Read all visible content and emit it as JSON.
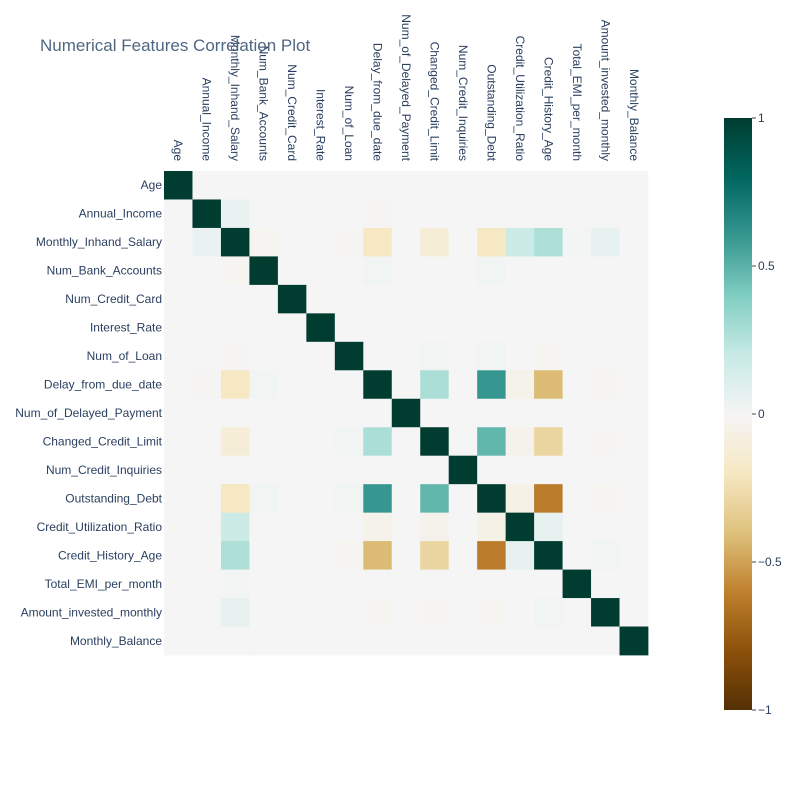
{
  "chart_data": {
    "type": "heatmap",
    "title": "Numerical Features Correlation Plot",
    "features": [
      "Age",
      "Annual_Income",
      "Monthly_Inhand_Salary",
      "Num_Bank_Accounts",
      "Num_Credit_Card",
      "Interest_Rate",
      "Num_of_Loan",
      "Delay_from_due_date",
      "Num_of_Delayed_Payment",
      "Changed_Credit_Limit",
      "Num_Credit_Inquiries",
      "Outstanding_Debt",
      "Credit_Utilization_Ratio",
      "Credit_History_Age",
      "Total_EMI_per_month",
      "Amount_invested_monthly",
      "Monthly_Balance"
    ],
    "matrix": [
      [
        1,
        0,
        0,
        0,
        0,
        0,
        0,
        0,
        0,
        0,
        0,
        0,
        0,
        0,
        0,
        0,
        0
      ],
      [
        0,
        1,
        0.05,
        0,
        0,
        0,
        0,
        -0.01,
        0,
        0,
        0,
        0,
        0,
        0,
        0,
        0,
        0
      ],
      [
        0,
        0.05,
        1,
        -0.02,
        0,
        0,
        -0.01,
        -0.2,
        0,
        -0.12,
        0,
        -0.2,
        0.18,
        0.27,
        0.01,
        0.06,
        0
      ],
      [
        0,
        0,
        -0.02,
        1,
        0,
        0,
        0,
        0.02,
        0,
        0,
        0,
        0.02,
        0,
        0,
        0,
        0,
        0
      ],
      [
        0,
        0,
        0,
        0,
        1,
        0,
        0,
        0,
        0,
        0,
        0,
        0,
        0,
        0,
        0,
        0,
        0
      ],
      [
        0,
        0,
        0,
        0,
        0,
        1,
        0,
        0,
        0,
        0,
        0,
        0,
        0,
        0,
        0,
        0,
        0
      ],
      [
        0,
        0,
        -0.01,
        0,
        0,
        0,
        1,
        0,
        0,
        0.02,
        0,
        0.02,
        0,
        -0.02,
        0,
        0,
        0
      ],
      [
        0,
        -0.01,
        -0.2,
        0.02,
        0,
        0,
        0,
        1,
        0,
        0.28,
        0,
        0.6,
        -0.05,
        -0.42,
        0,
        -0.02,
        0
      ],
      [
        0,
        0,
        0,
        0,
        0,
        0,
        0,
        0,
        1,
        0,
        0,
        0,
        0,
        0,
        0,
        0,
        0
      ],
      [
        0,
        0,
        -0.12,
        0,
        0,
        0,
        0.02,
        0.28,
        0,
        1,
        0,
        0.48,
        -0.04,
        -0.3,
        0,
        -0.01,
        0
      ],
      [
        0,
        0,
        0,
        0,
        0,
        0,
        0,
        0,
        0,
        0,
        1,
        0,
        0,
        0,
        0,
        0,
        0
      ],
      [
        0,
        0,
        -0.2,
        0.02,
        0,
        0,
        0.02,
        0.6,
        0,
        0.48,
        0,
        1,
        -0.06,
        -0.62,
        0,
        -0.02,
        0
      ],
      [
        0,
        0,
        0.18,
        0,
        0,
        0,
        0,
        -0.05,
        0,
        -0.04,
        0,
        -0.06,
        1,
        0.06,
        0,
        0,
        0
      ],
      [
        0,
        0,
        0.27,
        0,
        0,
        0,
        -0.02,
        -0.42,
        0,
        -0.3,
        0,
        -0.62,
        0.06,
        1,
        0,
        0.02,
        0
      ],
      [
        0,
        0,
        0.01,
        0,
        0,
        0,
        0,
        0,
        0,
        0,
        0,
        0,
        0,
        0,
        1,
        0,
        0
      ],
      [
        0,
        0,
        0.06,
        0,
        0,
        0,
        0,
        -0.02,
        0,
        -0.01,
        0,
        -0.02,
        0,
        0.02,
        0,
        1,
        0
      ],
      [
        0,
        0,
        0,
        0,
        0,
        0,
        0,
        0,
        0,
        0,
        0,
        0,
        0,
        0,
        0,
        0,
        1
      ]
    ],
    "zrange": [
      -1,
      1
    ],
    "colorscale": "BrBG",
    "colorbar_ticks": [
      {
        "value": 1,
        "label": "1"
      },
      {
        "value": 0.5,
        "label": "0.5"
      },
      {
        "value": 0,
        "label": "0"
      },
      {
        "value": -0.5,
        "label": "−0.5"
      },
      {
        "value": -1,
        "label": "−1"
      }
    ],
    "colorscale_stops": [
      "#543005",
      "#8c510a",
      "#bf812d",
      "#dfc27d",
      "#f6e8c3",
      "#f5f5f5",
      "#c7eae5",
      "#80cdc1",
      "#35978f",
      "#01665e",
      "#003c30"
    ],
    "xaxis_side": "top",
    "xtick_angle": 90,
    "legend": "colorbar-right"
  }
}
